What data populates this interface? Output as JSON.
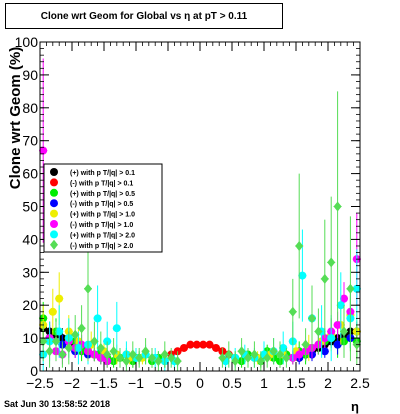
{
  "chart_data": {
    "type": "scatter",
    "title": "Clone wrt Geom for Global vs   η at pT > 0.11",
    "xlabel": "η",
    "ylabel": "Clone wrt Geom (%)",
    "xlim": [
      -2.5,
      2.5
    ],
    "ylim": [
      0,
      100
    ],
    "x_ticks": [
      -2.5,
      -2,
      -1.5,
      -1,
      -0.5,
      0,
      0.5,
      1,
      1.5,
      2,
      2.5
    ],
    "x_tick_labels": [
      "−2.5",
      "−2",
      "−1.5",
      "−1",
      "−0.5",
      "0",
      "0.5",
      "1",
      "1.5",
      "2",
      "2.5"
    ],
    "y_ticks": [
      0,
      10,
      20,
      30,
      40,
      50,
      60,
      70,
      80,
      90,
      100
    ],
    "y_tick_labels": [
      "0",
      "10",
      "20",
      "30",
      "40",
      "50",
      "60",
      "70",
      "80",
      "90",
      "100"
    ],
    "legend_position": "left-middle",
    "series": [
      {
        "name": "(+) with p T/|q| > 0.1",
        "color": "#000000",
        "marker": "circle",
        "x": [
          -2.45,
          -2.35,
          -2.25,
          -2.15,
          -2.05,
          -1.95,
          -1.85,
          -1.75,
          -1.65,
          -1.55,
          -1.45,
          1.55,
          1.65,
          1.75,
          1.85,
          1.95,
          2.05,
          2.15,
          2.25,
          2.35,
          2.45
        ],
        "y": [
          13,
          12,
          11,
          10,
          9,
          8,
          7,
          6,
          5,
          4,
          3,
          4,
          5,
          6,
          7,
          8,
          9,
          10,
          11,
          12,
          12
        ],
        "err": [
          3,
          3,
          3,
          3,
          2,
          2,
          2,
          2,
          2,
          1,
          1,
          1,
          2,
          2,
          2,
          2,
          2,
          3,
          3,
          3,
          3
        ]
      },
      {
        "name": "(-) with p T/|q| > 0.1",
        "color": "#ff0000",
        "marker": "circle",
        "x": [
          -0.45,
          -0.35,
          -0.25,
          -0.15,
          -0.05,
          0.05,
          0.15,
          0.25,
          0.35,
          0.45
        ],
        "y": [
          5,
          6,
          7,
          8,
          8,
          8,
          8,
          7,
          6,
          5
        ],
        "err": [
          1,
          1,
          1,
          1,
          1,
          1,
          1,
          1,
          1,
          1
        ]
      },
      {
        "name": "(+) with p T/|q| > 0.5",
        "color": "#00ee00",
        "marker": "circle",
        "x": [
          -2.45,
          -2.35,
          -2.25,
          -2.15,
          -2.05,
          -1.95,
          -1.85,
          -1.75,
          -1.65,
          -1.55,
          -1.45,
          -1.35,
          -1.25,
          -1.15,
          -1.05,
          -0.95,
          -0.85,
          -0.75,
          -0.65,
          -0.55,
          0.55,
          0.65,
          0.75,
          0.85,
          0.95,
          1.05,
          1.15,
          1.25,
          1.35,
          1.45,
          1.55,
          1.65,
          1.75,
          1.85,
          1.95,
          2.05,
          2.15,
          2.25,
          2.35,
          2.45
        ],
        "y": [
          16,
          10,
          12,
          8,
          10,
          9,
          6,
          7,
          5,
          6,
          4,
          3,
          4,
          5,
          3,
          4,
          5,
          3,
          4,
          3,
          4,
          3,
          5,
          4,
          3,
          6,
          4,
          3,
          5,
          4,
          6,
          5,
          7,
          8,
          9,
          10,
          8,
          9,
          10,
          9
        ],
        "err": [
          5,
          4,
          4,
          3,
          3,
          3,
          3,
          3,
          2,
          2,
          2,
          2,
          2,
          2,
          2,
          2,
          2,
          2,
          2,
          2,
          2,
          2,
          2,
          2,
          2,
          2,
          2,
          2,
          2,
          2,
          3,
          3,
          3,
          3,
          3,
          3,
          4,
          4,
          4,
          5
        ]
      },
      {
        "name": "(-) with p T/|q| > 0.5",
        "color": "#0000ff",
        "marker": "circle",
        "x": [
          -2.35,
          -2.15,
          -1.95,
          -1.75,
          -1.55,
          1.55,
          1.75,
          1.95,
          2.15,
          2.35
        ],
        "y": [
          10,
          8,
          6,
          5,
          4,
          4,
          5,
          6,
          8,
          10
        ],
        "err": [
          3,
          3,
          2,
          2,
          2,
          2,
          2,
          2,
          3,
          3
        ]
      },
      {
        "name": "(+) with p T/|q| > 1.0",
        "color": "#eeee00",
        "marker": "circle",
        "x": [
          -2.45,
          -2.3,
          -2.2,
          -2.05,
          -1.9,
          -1.7,
          -1.5,
          -1.3,
          -1.1,
          -0.9,
          0.9,
          1.1,
          1.3,
          1.5,
          1.7,
          1.9,
          2.05,
          2.2,
          2.35,
          2.45
        ],
        "y": [
          14,
          18,
          22,
          12,
          9,
          8,
          6,
          5,
          4,
          4,
          4,
          5,
          5,
          6,
          7,
          9,
          11,
          14,
          17,
          12
        ],
        "err": [
          6,
          7,
          8,
          5,
          4,
          4,
          3,
          3,
          2,
          2,
          2,
          2,
          3,
          3,
          4,
          4,
          5,
          6,
          7,
          6
        ]
      },
      {
        "name": "(-) with p T/|q| > 1.0",
        "color": "#ff00ff",
        "marker": "circle",
        "x": [
          -2.45,
          -2.35,
          -2.25,
          -2.15,
          -2.05,
          -1.95,
          -1.85,
          -1.75,
          -1.65,
          -1.55,
          -1.45,
          1.45,
          1.55,
          1.65,
          1.75,
          1.85,
          1.95,
          2.05,
          2.15,
          2.25,
          2.35,
          2.45
        ],
        "y": [
          67,
          10,
          6,
          5,
          9,
          7,
          8,
          6,
          5,
          4,
          3,
          4,
          5,
          6,
          7,
          8,
          10,
          12,
          14,
          22,
          18,
          34
        ],
        "err": [
          28,
          4,
          3,
          3,
          3,
          3,
          3,
          3,
          2,
          2,
          2,
          2,
          2,
          2,
          3,
          3,
          3,
          4,
          4,
          5,
          5,
          14
        ]
      },
      {
        "name": "(+) with p T/|q| > 2.0",
        "color": "#00ffff",
        "marker": "circle",
        "x": [
          -2.45,
          -2.35,
          -2.2,
          -2.05,
          -1.9,
          -1.75,
          -1.6,
          -1.45,
          -1.3,
          -1.15,
          -1.0,
          -0.85,
          -0.7,
          -0.55,
          -0.4,
          0.4,
          0.55,
          0.7,
          0.85,
          1.0,
          1.15,
          1.3,
          1.45,
          1.6,
          1.75,
          1.9,
          2.05,
          2.2,
          2.35,
          2.45
        ],
        "y": [
          5,
          9,
          12,
          10,
          7,
          8,
          16,
          9,
          13,
          5,
          4,
          5,
          4,
          3,
          3,
          3,
          4,
          5,
          4,
          5,
          6,
          7,
          9,
          29,
          16,
          12,
          10,
          20,
          16,
          25
        ],
        "err": [
          5,
          6,
          8,
          6,
          5,
          6,
          10,
          6,
          8,
          4,
          3,
          3,
          3,
          3,
          2,
          2,
          3,
          3,
          3,
          4,
          4,
          5,
          6,
          14,
          10,
          8,
          7,
          10,
          9,
          12
        ]
      },
      {
        "name": "(-) with p T/|q| > 2.0",
        "color": "#55dd55",
        "marker": "diamond",
        "x": [
          -2.45,
          -2.35,
          -2.25,
          -2.15,
          -2.05,
          -1.95,
          -1.85,
          -1.75,
          -1.65,
          -1.55,
          -1.45,
          -1.35,
          -1.25,
          -1.15,
          -1.05,
          -0.95,
          -0.85,
          -0.75,
          -0.65,
          -0.55,
          -0.45,
          -0.35,
          0.35,
          0.45,
          0.55,
          0.65,
          0.75,
          0.85,
          0.95,
          1.05,
          1.15,
          1.25,
          1.35,
          1.45,
          1.55,
          1.65,
          1.75,
          1.85,
          1.95,
          2.05,
          2.15,
          2.25,
          2.35,
          2.45
        ],
        "y": [
          9,
          6,
          9,
          5,
          7,
          11,
          13,
          25,
          9,
          7,
          5,
          6,
          4,
          3,
          5,
          4,
          6,
          4,
          3,
          5,
          4,
          3,
          4,
          5,
          3,
          6,
          4,
          5,
          3,
          4,
          6,
          5,
          4,
          18,
          38,
          8,
          16,
          12,
          28,
          33,
          50,
          12,
          25,
          8
        ],
        "err": [
          6,
          5,
          6,
          4,
          5,
          6,
          7,
          22,
          6,
          5,
          4,
          4,
          3,
          3,
          4,
          3,
          4,
          3,
          3,
          4,
          3,
          3,
          3,
          4,
          3,
          4,
          3,
          4,
          3,
          3,
          4,
          4,
          3,
          10,
          22,
          5,
          10,
          7,
          18,
          20,
          35,
          8,
          22,
          6
        ]
      }
    ]
  },
  "footer": {
    "timestamp": "Sat Jun 30 13:58:52 2018"
  }
}
